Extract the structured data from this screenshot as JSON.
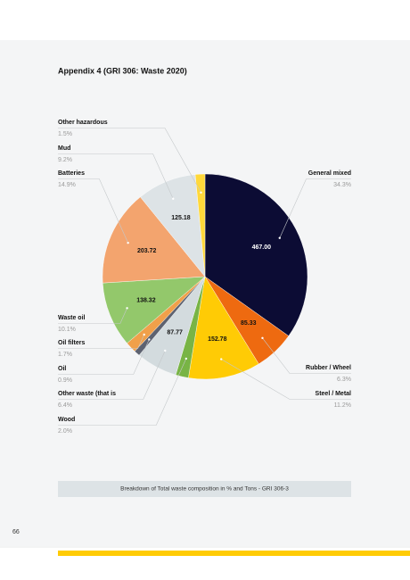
{
  "page": {
    "title": "Appendix 4 (GRI 306: Waste 2020)",
    "caption": "Breakdown of Total waste composition in % and Tons -  GRI 306-3",
    "page_number": "66"
  },
  "chart_data": {
    "type": "pie",
    "categories": [
      "General mixed",
      "Rubber / Wheel",
      "Steel / Metal",
      "Wood",
      "Other waste (that is",
      "Oil",
      "Oil filters",
      "Waste oil",
      "Batteries",
      "Mud",
      "Other hazardous"
    ],
    "values": [
      34.3,
      6.3,
      11.2,
      2.0,
      6.4,
      0.9,
      1.7,
      10.1,
      14.9,
      9.2,
      1.5
    ],
    "value_labels": [
      "34.3%",
      "6.3%",
      "11.2%",
      "2.0%",
      "6.4%",
      "0.9%",
      "1.7%",
      "10.1%",
      "14.9%",
      "9.2%",
      "1.5%"
    ],
    "colors": [
      "#0c0c34",
      "#ee6a10",
      "#ffcb05",
      "#78b445",
      "#d3dbde",
      "#5d6270",
      "#f0a04a",
      "#93c86b",
      "#f3a46e",
      "#dde3e6",
      "#ffd83a"
    ],
    "tons": {
      "values": [
        467.0,
        85.33,
        152.78,
        null,
        87.77,
        null,
        null,
        138.32,
        203.72,
        125.18,
        null
      ],
      "value_labels": [
        "467.00",
        "85.33",
        "152.78",
        null,
        "87.77",
        null,
        null,
        "138.32",
        "203.72",
        "125.18",
        null
      ]
    }
  }
}
